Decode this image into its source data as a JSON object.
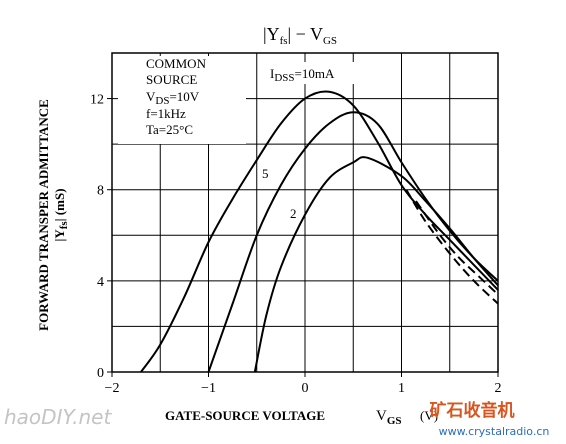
{
  "chart_data": {
    "type": "line",
    "title": [
      "|Y",
      "fs",
      "|  −  V",
      "GS"
    ],
    "ylabel": [
      "FORWARD TRANSPER ADMITTANCE",
      "|Y",
      "fs",
      "|  (mS)"
    ],
    "xlabel": [
      "GATE-SOURCE VOLTAGE",
      "V",
      "GS",
      "(V)"
    ],
    "conditions": {
      "line1": "COMMON",
      "line2": "SOURCE",
      "vds": [
        "V",
        "DS",
        "=10V"
      ],
      "freq": "f=1kHz",
      "temp": "Ta=25°C"
    },
    "series_labels": {
      "top": [
        "I",
        "DSS",
        "=10mA"
      ],
      "mid": "5",
      "low": "2"
    },
    "xlim": [
      -2,
      2
    ],
    "ylim": [
      0,
      14
    ],
    "xticks": [
      {
        "value": -2,
        "label": "−2"
      },
      {
        "value": -1,
        "label": "−1"
      },
      0,
      1,
      2
    ],
    "yticks": [
      0,
      4,
      8,
      12
    ],
    "xgrid": [
      -1.5,
      -1,
      -0.5,
      0,
      0.5,
      1,
      1.5
    ],
    "ygrid": [
      2,
      4,
      6,
      8,
      10,
      12
    ],
    "color": "#000000",
    "series": [
      {
        "x": [
          -1.7,
          -1.5,
          -1.25,
          -1,
          -0.75,
          -0.5,
          -0.25,
          0,
          0.25,
          0.5,
          0.75,
          1,
          1.25,
          1.5,
          1.75,
          2
        ],
        "values": [
          0,
          1.2,
          3.3,
          5.7,
          7.6,
          9.3,
          10.9,
          12.0,
          12.3,
          11.7,
          10.1,
          8.2,
          6.9,
          5.8,
          4.7,
          3.6
        ],
        "dashed": false
      },
      {
        "x": [
          -1,
          -0.75,
          -0.5,
          -0.25,
          0,
          0.25,
          0.5,
          0.75,
          1,
          1.25,
          1.5,
          1.75,
          2
        ],
        "values": [
          0,
          3.0,
          6.0,
          8.2,
          9.8,
          10.9,
          11.4,
          10.9,
          9.2,
          7.6,
          6.2,
          5.0,
          4.0
        ],
        "dashed": false
      },
      {
        "x": [
          -0.52,
          -0.4,
          -0.25,
          0,
          0.25,
          0.5,
          0.65,
          1,
          1.25,
          1.5,
          1.75,
          2
        ],
        "values": [
          0,
          2.5,
          4.6,
          6.9,
          8.5,
          9.2,
          9.4,
          8.6,
          7.5,
          6.3,
          5.0,
          3.8
        ],
        "dashed": false
      },
      {
        "x": [
          1.05,
          1.25,
          1.5,
          1.75,
          2
        ],
        "values": [
          8.0,
          6.6,
          5.2,
          4.0,
          3.0
        ],
        "dashed": true
      },
      {
        "x": [
          1.15,
          1.4,
          1.6,
          1.8,
          2
        ],
        "values": [
          7.5,
          6.0,
          5.0,
          4.2,
          3.4
        ],
        "dashed": true
      }
    ],
    "watermarks": [
      "haoDIY.net",
      "矿石收音机",
      "www.crystalradio.cn"
    ]
  }
}
